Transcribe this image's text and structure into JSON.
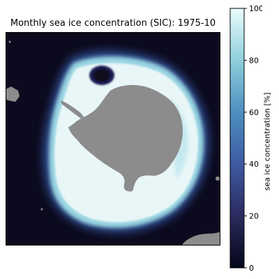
{
  "figure": {
    "title": "Monthly sea ice concentration (SIC): 1975-10"
  },
  "map": {
    "region": "Southern Ocean around Antarctica",
    "variable": "sea ice concentration",
    "period": "1975-10",
    "land_color": "#8c8c8c",
    "open_water_color": "#0c0a1e",
    "ice_color": "#e8f6f7"
  },
  "colorbar": {
    "label": "sea ice concentration [%]",
    "colormap": "ice",
    "range": [
      0,
      100
    ],
    "ticks": [
      {
        "value": 0,
        "label": "0"
      },
      {
        "value": 20,
        "label": "20"
      },
      {
        "value": 40,
        "label": "40"
      },
      {
        "value": 60,
        "label": "60"
      },
      {
        "value": 80,
        "label": "80"
      },
      {
        "value": 100,
        "label": "100"
      }
    ],
    "stops": [
      {
        "value": 0,
        "color": "#04061a"
      },
      {
        "value": 20,
        "color": "#2b2a5e"
      },
      {
        "value": 40,
        "color": "#3e5aa3"
      },
      {
        "value": 60,
        "color": "#4d8fc0"
      },
      {
        "value": 80,
        "color": "#8fcfdc"
      },
      {
        "value": 100,
        "color": "#eafcfd"
      }
    ]
  }
}
